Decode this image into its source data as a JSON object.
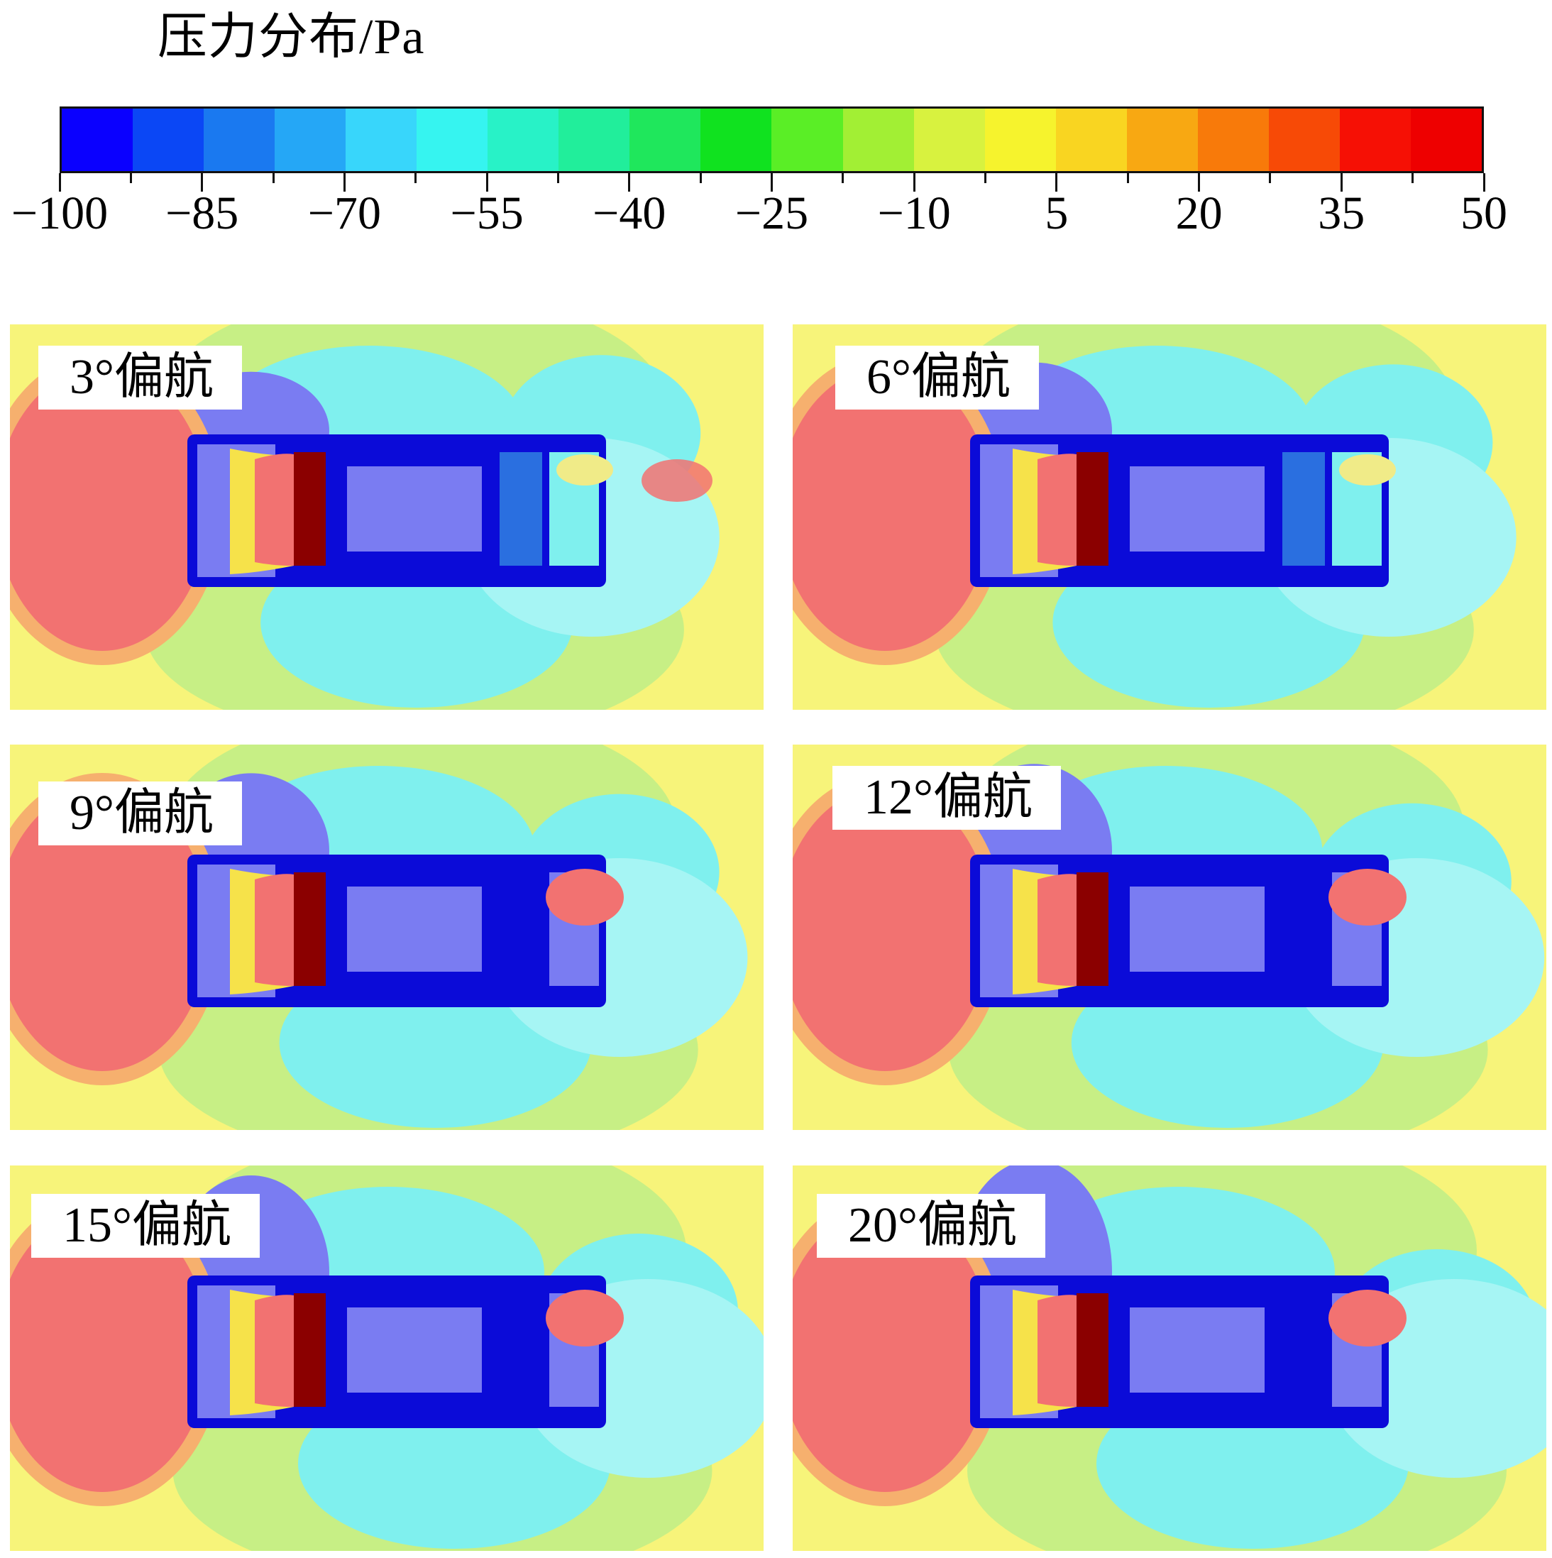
{
  "legend": {
    "title": "压力分布/Pa",
    "colors": [
      "#0a00ff",
      "#0b47f5",
      "#1a79f0",
      "#25a7f6",
      "#38d6fb",
      "#36f4f0",
      "#28f2c7",
      "#21ee9b",
      "#1fe75c",
      "#10e21f",
      "#5aee26",
      "#a2ef34",
      "#d8f23f",
      "#f6f32d",
      "#f9d521",
      "#f8a812",
      "#f87a0a",
      "#f74a06",
      "#f61005",
      "#ee0000"
    ],
    "tick_labels": [
      "−100",
      "−85",
      "−70",
      "−55",
      "−40",
      "−25",
      "−10",
      "5",
      "20",
      "35",
      "50"
    ]
  },
  "panels": [
    {
      "label": "3°偏航"
    },
    {
      "label": "6°偏航"
    },
    {
      "label": "9°偏航"
    },
    {
      "label": "12°偏航"
    },
    {
      "label": "15°偏航"
    },
    {
      "label": "20°偏航"
    }
  ]
}
